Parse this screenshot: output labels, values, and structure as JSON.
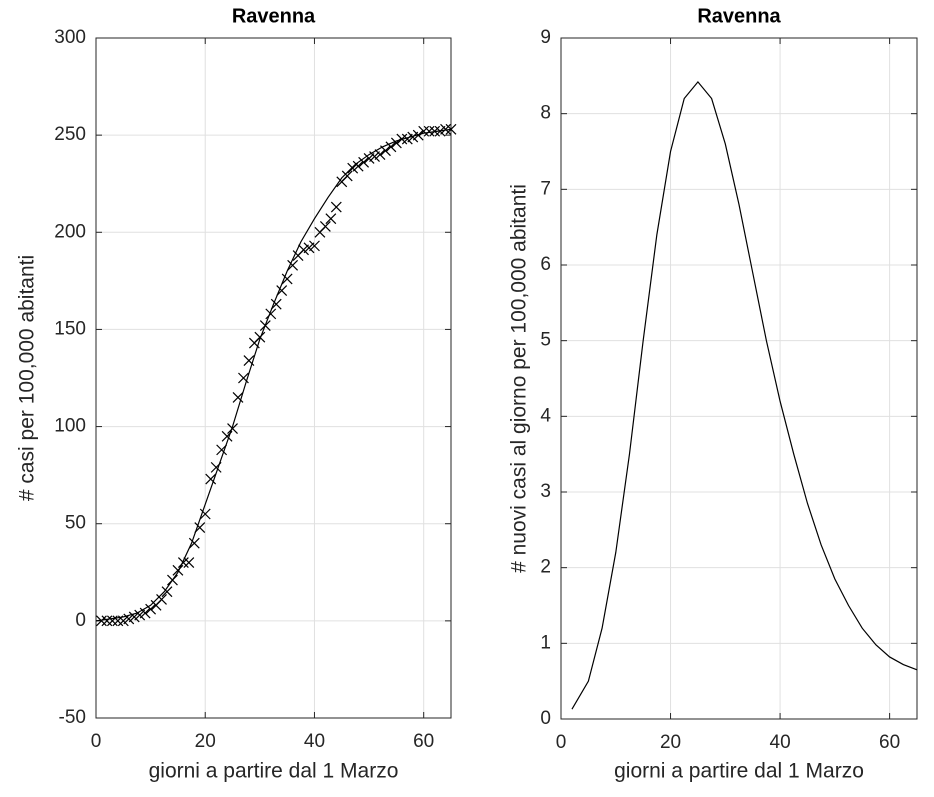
{
  "chart_data": [
    {
      "type": "scatter",
      "title": "Ravenna",
      "xlabel": "giorni a partire dal 1 Marzo",
      "ylabel": "# casi per 100,000 abitanti",
      "xlim": [
        0,
        65
      ],
      "ylim": [
        -50,
        300
      ],
      "xticks": [
        0,
        20,
        40,
        60
      ],
      "yticks": [
        -50,
        0,
        50,
        100,
        150,
        200,
        250,
        300
      ],
      "grid": true,
      "color": "#000000",
      "marker": "x",
      "x": [
        1,
        2,
        3,
        4,
        5,
        6,
        7,
        8,
        9,
        10,
        11,
        12,
        13,
        14,
        15,
        16,
        17,
        18,
        19,
        20,
        21,
        22,
        23,
        24,
        25,
        26,
        27,
        28,
        29,
        30,
        31,
        32,
        33,
        34,
        35,
        36,
        37,
        38,
        39,
        40,
        41,
        42,
        43,
        44,
        45,
        46,
        47,
        48,
        49,
        50,
        51,
        52,
        53,
        54,
        55,
        56,
        57,
        58,
        59,
        60,
        61,
        62,
        63,
        64,
        65
      ],
      "values": [
        0,
        0,
        0,
        0,
        0,
        1,
        2,
        3,
        4,
        6,
        8,
        11,
        15,
        21,
        26,
        30,
        30,
        40,
        48,
        55,
        73,
        79,
        88,
        95,
        99,
        115,
        125,
        134,
        143,
        146,
        152,
        158,
        163,
        170,
        176,
        183,
        188,
        191,
        192,
        193,
        200,
        203,
        207,
        213,
        226,
        229,
        233,
        234,
        236,
        238,
        239,
        240,
        242,
        244,
        246,
        248,
        248,
        249,
        250,
        252,
        252,
        252,
        252,
        253,
        253
      ],
      "fit": {
        "x": [
          0,
          2.5,
          5,
          7.5,
          10,
          12.5,
          15,
          17.5,
          20,
          22.5,
          25,
          27.5,
          30,
          32.5,
          35,
          37.5,
          40,
          42.5,
          45,
          47.5,
          50,
          52.5,
          55,
          57.5,
          60,
          62.5,
          65
        ],
        "values": [
          0,
          1,
          2,
          4,
          8,
          15,
          25,
          40,
          60,
          80,
          100,
          123,
          145,
          163,
          180,
          195,
          207,
          218,
          228,
          235,
          240,
          244,
          247,
          249,
          251,
          252,
          253
        ]
      }
    },
    {
      "type": "line",
      "title": "Ravenna",
      "xlabel": "giorni a partire dal 1 Marzo",
      "ylabel": "# nuovi casi al giorno per 100,000 abitanti",
      "xlim": [
        0,
        65
      ],
      "ylim": [
        0,
        9
      ],
      "xticks": [
        0,
        20,
        40,
        60
      ],
      "yticks": [
        0,
        1,
        2,
        3,
        4,
        5,
        6,
        7,
        8,
        9
      ],
      "grid": true,
      "color": "#000000",
      "x": [
        2,
        5,
        7.5,
        10,
        12.5,
        15,
        17.5,
        20,
        22.5,
        25,
        27.5,
        30,
        32.5,
        35,
        37.5,
        40,
        42.5,
        45,
        47.5,
        50,
        52.5,
        55,
        57.5,
        60,
        62.5,
        65
      ],
      "values": [
        0.13,
        0.5,
        1.2,
        2.2,
        3.5,
        5,
        6.4,
        7.5,
        8.2,
        8.42,
        8.2,
        7.6,
        6.8,
        5.9,
        5.0,
        4.2,
        3.5,
        2.85,
        2.3,
        1.85,
        1.5,
        1.2,
        0.98,
        0.82,
        0.72,
        0.65
      ]
    }
  ]
}
